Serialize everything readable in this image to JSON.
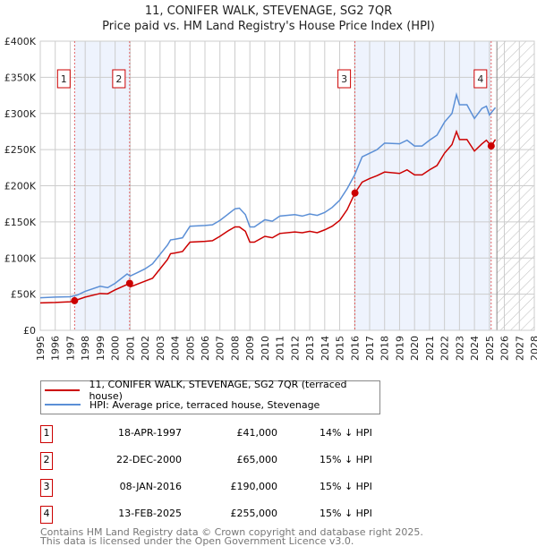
{
  "title": "11, CONIFER WALK, STEVENAGE, SG2 7QR",
  "subtitle": "Price paid vs. HM Land Registry's House Price Index (HPI)",
  "chart_data": {
    "type": "line",
    "xlim": [
      1995,
      2028
    ],
    "ylim": [
      0,
      400000
    ],
    "yticks": [
      {
        "v": 0,
        "l": "£0"
      },
      {
        "v": 50000,
        "l": "£50K"
      },
      {
        "v": 100000,
        "l": "£100K"
      },
      {
        "v": 150000,
        "l": "£150K"
      },
      {
        "v": 200000,
        "l": "£200K"
      },
      {
        "v": 250000,
        "l": "£250K"
      },
      {
        "v": 300000,
        "l": "£300K"
      },
      {
        "v": 350000,
        "l": "£350K"
      },
      {
        "v": 400000,
        "l": "£400K"
      }
    ],
    "xticks": [
      "1995",
      "1996",
      "1997",
      "1998",
      "1999",
      "2000",
      "2001",
      "2002",
      "2003",
      "2004",
      "2005",
      "2006",
      "2007",
      "2008",
      "2009",
      "2010",
      "2011",
      "2012",
      "2013",
      "2014",
      "2015",
      "2016",
      "2017",
      "2018",
      "2019",
      "2020",
      "2021",
      "2022",
      "2023",
      "2024",
      "2025",
      "2026",
      "2027",
      "2028"
    ],
    "shaded": [
      [
        1997.29,
        2000.97
      ],
      [
        2016.02,
        2025.12
      ]
    ],
    "hatch_from": 2025.5,
    "series": [
      {
        "name": "11, CONIFER WALK, STEVENAGE, SG2 7QR (terraced house)",
        "color": "#cc0000",
        "x": [
          1995,
          1996,
          1997,
          1997.3,
          1998,
          1999,
          1999.5,
          2000,
          2000.97,
          2001,
          2001.5,
          2002,
          2002.5,
          2003,
          2003.5,
          2003.7,
          2004,
          2004.5,
          2005,
          2006,
          2006.5,
          2007,
          2007.5,
          2008,
          2008.3,
          2008.7,
          2009,
          2009.3,
          2010,
          2010.5,
          2011,
          2012,
          2012.5,
          2013,
          2013.5,
          2014,
          2014.5,
          2015,
          2015.5,
          2016.02,
          2016.5,
          2017,
          2017.5,
          2018,
          2019,
          2019.5,
          2020,
          2020.5,
          2021,
          2021.5,
          2022,
          2022.5,
          2022.8,
          2023,
          2023.5,
          2024,
          2024.5,
          2024.8,
          2025.12,
          2025.4
        ],
        "y": [
          38000,
          38500,
          39500,
          41000,
          46000,
          51000,
          50500,
          56000,
          65000,
          60000,
          64000,
          68000,
          72000,
          85000,
          98000,
          106000,
          107000,
          109000,
          122000,
          123000,
          124000,
          130000,
          137000,
          143000,
          143000,
          137000,
          122000,
          122000,
          130000,
          128000,
          134000,
          136000,
          135000,
          137000,
          135000,
          139000,
          144000,
          152000,
          167000,
          190000,
          205000,
          210000,
          214000,
          219000,
          217000,
          222000,
          215000,
          215000,
          222000,
          228000,
          245000,
          257000,
          275000,
          264000,
          264000,
          248000,
          258000,
          263000,
          255000,
          264000
        ]
      },
      {
        "name": "HPI: Average price, terraced house, Stevenage",
        "color": "#5b8fd6",
        "x": [
          1995,
          1996,
          1997,
          1997.5,
          1998,
          1999,
          1999.5,
          2000,
          2000.8,
          2001,
          2001.5,
          2002,
          2002.5,
          2003,
          2003.5,
          2003.7,
          2004,
          2004.5,
          2005,
          2006,
          2006.5,
          2007,
          2007.5,
          2008,
          2008.3,
          2008.7,
          2009,
          2009.3,
          2010,
          2010.5,
          2011,
          2012,
          2012.5,
          2013,
          2013.5,
          2014,
          2014.5,
          2015,
          2015.5,
          2016,
          2016.5,
          2017,
          2017.5,
          2018,
          2019,
          2019.5,
          2020,
          2020.5,
          2021,
          2021.5,
          2022,
          2022.5,
          2022.8,
          2023,
          2023.5,
          2024,
          2024.5,
          2024.8,
          2025,
          2025.4
        ],
        "y": [
          45000,
          46000,
          46500,
          49000,
          54000,
          61000,
          59000,
          65000,
          78000,
          75000,
          80000,
          85000,
          92000,
          105000,
          118000,
          125000,
          126000,
          128000,
          144000,
          145000,
          146000,
          152000,
          160000,
          168000,
          169000,
          160000,
          143000,
          143000,
          153000,
          151000,
          158000,
          160000,
          158000,
          161000,
          159000,
          163000,
          170000,
          180000,
          196000,
          215000,
          240000,
          245000,
          250000,
          259000,
          258000,
          263000,
          255000,
          255000,
          263000,
          270000,
          288000,
          300000,
          326000,
          312000,
          312000,
          293000,
          307000,
          310000,
          298000,
          308000
        ]
      }
    ],
    "markers": [
      {
        "label": "1",
        "x": 1997.29,
        "y": 41000
      },
      {
        "label": "2",
        "x": 2000.97,
        "y": 65000
      },
      {
        "label": "3",
        "x": 2016.02,
        "y": 190000
      },
      {
        "label": "4",
        "x": 2025.12,
        "y": 255000
      }
    ]
  },
  "legend": {
    "red": "11, CONIFER WALK, STEVENAGE, SG2 7QR (terraced house)",
    "blue": "HPI: Average price, terraced house, Stevenage"
  },
  "transactions": [
    {
      "num": "1",
      "date": "18-APR-1997",
      "price": "£41,000",
      "hpi": "14% ↓ HPI"
    },
    {
      "num": "2",
      "date": "22-DEC-2000",
      "price": "£65,000",
      "hpi": "15% ↓ HPI"
    },
    {
      "num": "3",
      "date": "08-JAN-2016",
      "price": "£190,000",
      "hpi": "15% ↓ HPI"
    },
    {
      "num": "4",
      "date": "13-FEB-2025",
      "price": "£255,000",
      "hpi": "15% ↓ HPI"
    }
  ],
  "footer": {
    "line1": "Contains HM Land Registry data © Crown copyright and database right 2025.",
    "line2": "This data is licensed under the Open Government Licence v3.0."
  }
}
